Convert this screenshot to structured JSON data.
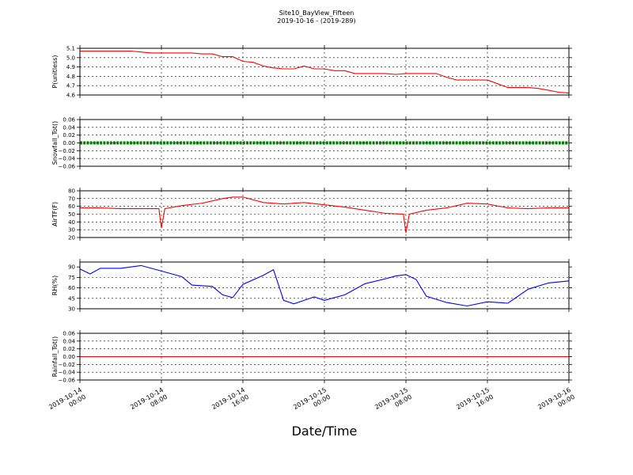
{
  "figure": {
    "title": "Site10_BayView_Fifteen",
    "subtitle": "2019-10-16 - (2019-289)",
    "xlabel": "Date/Time"
  },
  "x_ticks": [
    {
      "line1": "2019-10-14",
      "line2": "00:00"
    },
    {
      "line1": "2019-10-14",
      "line2": "08:00"
    },
    {
      "line1": "2019-10-14",
      "line2": "16:00"
    },
    {
      "line1": "2019-10-15",
      "line2": "00:00"
    },
    {
      "line1": "2019-10-15",
      "line2": "08:00"
    },
    {
      "line1": "2019-10-15",
      "line2": "16:00"
    },
    {
      "line1": "2019-10-16",
      "line2": "00:00"
    }
  ],
  "chart_data": [
    {
      "type": "line",
      "ylabel": "P(unitless)",
      "color": "#ff0000",
      "ylim": [
        4.6,
        5.1
      ],
      "yticks": [
        "5.1",
        "5.0",
        "4.9",
        "4.8",
        "4.7",
        "4.6"
      ],
      "grid": true,
      "x": [
        "2019-10-14 00:00",
        "2019-10-14 01:00",
        "2019-10-14 02:00",
        "2019-10-14 03:00",
        "2019-10-14 04:00",
        "2019-10-14 05:00",
        "2019-10-14 06:00",
        "2019-10-14 07:00",
        "2019-10-14 08:00",
        "2019-10-14 09:00",
        "2019-10-14 10:00",
        "2019-10-14 11:00",
        "2019-10-14 12:00",
        "2019-10-14 13:00",
        "2019-10-14 14:00",
        "2019-10-14 15:00",
        "2019-10-14 16:00",
        "2019-10-14 17:00",
        "2019-10-14 18:00",
        "2019-10-14 19:00",
        "2019-10-14 20:00",
        "2019-10-14 21:00",
        "2019-10-14 22:00",
        "2019-10-14 23:00",
        "2019-10-15 00:00",
        "2019-10-15 01:00",
        "2019-10-15 02:00",
        "2019-10-15 03:00",
        "2019-10-15 04:00",
        "2019-10-15 05:00",
        "2019-10-15 06:00",
        "2019-10-15 07:00",
        "2019-10-15 08:00",
        "2019-10-15 09:00",
        "2019-10-15 10:00",
        "2019-10-15 11:00",
        "2019-10-15 12:00",
        "2019-10-15 13:00",
        "2019-10-15 14:00",
        "2019-10-15 15:00",
        "2019-10-15 16:00",
        "2019-10-15 17:00",
        "2019-10-15 18:00",
        "2019-10-15 19:00",
        "2019-10-15 20:00",
        "2019-10-15 21:00",
        "2019-10-15 22:00",
        "2019-10-15 23:00",
        "2019-10-16 00:00"
      ],
      "y": [
        5.07,
        5.07,
        5.07,
        5.07,
        5.07,
        5.07,
        5.06,
        5.05,
        5.05,
        5.05,
        5.05,
        5.05,
        5.04,
        5.04,
        5.01,
        5.01,
        4.96,
        4.95,
        4.91,
        4.89,
        4.88,
        4.88,
        4.91,
        4.88,
        4.88,
        4.86,
        4.86,
        4.83,
        4.83,
        4.83,
        4.83,
        4.82,
        4.83,
        4.83,
        4.83,
        4.83,
        4.79,
        4.76,
        4.76,
        4.76,
        4.76,
        4.72,
        4.68,
        4.68,
        4.68,
        4.67,
        4.65,
        4.63,
        4.62
      ],
      "series_name": ""
    },
    {
      "type": "line",
      "ylabel": "Snowfall_Tot()",
      "color": "#008000",
      "ylim": [
        -0.06,
        0.06
      ],
      "yticks": [
        "0.06",
        "0.04",
        "0.02",
        "0.00",
        "−0.02",
        "−0.04",
        "−0.06"
      ],
      "grid": true,
      "marker": "dots",
      "x": [
        "2019-10-14 00:00",
        "2019-10-16 00:00"
      ],
      "y": [
        0.0,
        0.0
      ],
      "series_name": ""
    },
    {
      "type": "line",
      "ylabel": "AirTF(F)",
      "color": "#ff0000",
      "ylim": [
        20,
        80
      ],
      "yticks": [
        "80",
        "70",
        "60",
        "50",
        "40",
        "30",
        "20"
      ],
      "grid": true,
      "x": [
        "2019-10-14 00:00",
        "2019-10-14 02:00",
        "2019-10-14 04:00",
        "2019-10-14 06:00",
        "2019-10-14 07:45",
        "2019-10-14 08:00",
        "2019-10-14 08:20",
        "2019-10-14 10:00",
        "2019-10-14 12:00",
        "2019-10-14 14:00",
        "2019-10-14 15:00",
        "2019-10-14 16:00",
        "2019-10-14 18:00",
        "2019-10-14 20:00",
        "2019-10-14 22:00",
        "2019-10-15 00:00",
        "2019-10-15 02:00",
        "2019-10-15 04:00",
        "2019-10-15 06:00",
        "2019-10-15 07:45",
        "2019-10-15 08:00",
        "2019-10-15 08:20",
        "2019-10-15 10:00",
        "2019-10-15 12:00",
        "2019-10-15 14:00",
        "2019-10-15 16:00",
        "2019-10-15 18:00",
        "2019-10-15 20:00",
        "2019-10-15 22:00",
        "2019-10-16 00:00"
      ],
      "y": [
        58,
        58,
        57,
        57,
        57,
        32,
        57,
        61,
        64,
        70,
        72,
        72,
        65,
        63,
        65,
        62,
        59,
        55,
        51,
        50,
        26,
        50,
        55,
        58,
        64,
        63,
        58,
        57,
        58,
        58
      ],
      "series_name": ""
    },
    {
      "type": "line",
      "ylabel": "RH(%)",
      "color": "#0000ff",
      "ylim": [
        30,
        97
      ],
      "yticks": [
        "90",
        "75",
        "60",
        "45",
        "30"
      ],
      "grid": true,
      "x": [
        "2019-10-14 00:00",
        "2019-10-14 01:00",
        "2019-10-14 02:00",
        "2019-10-14 04:00",
        "2019-10-14 06:00",
        "2019-10-14 08:00",
        "2019-10-14 10:00",
        "2019-10-14 11:00",
        "2019-10-14 13:00",
        "2019-10-14 14:00",
        "2019-10-14 15:00",
        "2019-10-14 16:00",
        "2019-10-14 18:00",
        "2019-10-14 19:00",
        "2019-10-14 20:00",
        "2019-10-14 21:00",
        "2019-10-14 22:00",
        "2019-10-14 23:00",
        "2019-10-15 00:00",
        "2019-10-15 02:00",
        "2019-10-15 04:00",
        "2019-10-15 06:00",
        "2019-10-15 07:00",
        "2019-10-15 08:00",
        "2019-10-15 09:00",
        "2019-10-15 10:00",
        "2019-10-15 12:00",
        "2019-10-15 14:00",
        "2019-10-15 16:00",
        "2019-10-15 18:00",
        "2019-10-15 20:00",
        "2019-10-15 22:00",
        "2019-10-16 00:00"
      ],
      "y": [
        87,
        80,
        88,
        88,
        92,
        84,
        76,
        64,
        62,
        50,
        46,
        65,
        78,
        86,
        42,
        37,
        42,
        47,
        42,
        50,
        66,
        73,
        77,
        79,
        72,
        48,
        39,
        34,
        40,
        38,
        58,
        67,
        70
      ],
      "series_name": ""
    },
    {
      "type": "line",
      "ylabel": "Rainfall_Tot()",
      "color": "#ff0000",
      "ylim": [
        -0.06,
        0.06
      ],
      "yticks": [
        "0.06",
        "0.04",
        "0.02",
        "0.00",
        "−0.02",
        "−0.04",
        "−0.06"
      ],
      "grid": true,
      "x": [
        "2019-10-14 00:00",
        "2019-10-16 00:00"
      ],
      "y": [
        0.0,
        0.0
      ],
      "series_name": ""
    }
  ]
}
